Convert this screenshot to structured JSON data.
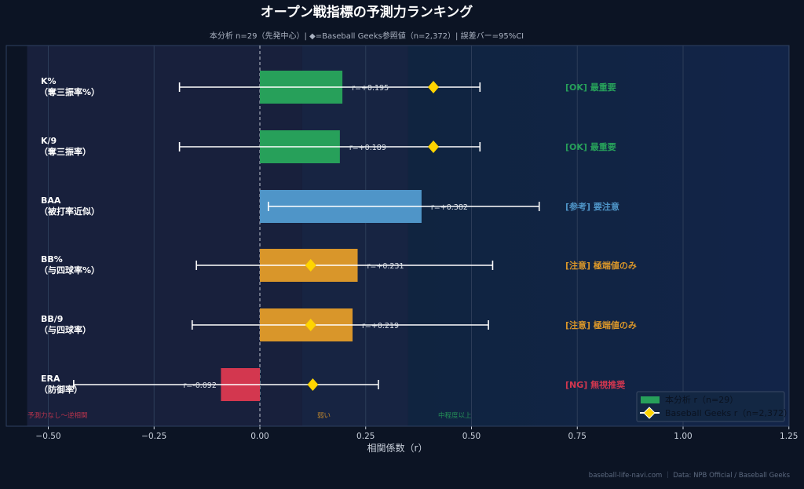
{
  "title": "オープン戦指標の予測力ランキング",
  "subtitle": "本分析 n=29（先発中心）| ◆=Baseball Geeks参照値（n=2,372）| 誤差バー=95%CI",
  "footer": "baseball-life-navi.com ｜ Data: NPB Official / Baseball Geeks",
  "colors": {
    "ok": "#27a05a",
    "ref": "#4f95c8",
    "warn": "#d9962a",
    "ng": "#d3374f",
    "diamond": "#ffd400",
    "background": "#0c1424"
  },
  "chart_data": {
    "type": "bar",
    "orientation": "horizontal",
    "xlabel": "相関係数（r）",
    "xlim": [
      -0.55,
      1.25
    ],
    "xticks": [
      "−0.50",
      "−0.25",
      "0.00",
      "0.25",
      "0.50",
      "0.75",
      "1.00",
      "1.25"
    ],
    "xtick_values": [
      -0.5,
      -0.25,
      0,
      0.25,
      0.5,
      0.75,
      1.0,
      1.25
    ],
    "grid": true,
    "legend_placement": "lower-right",
    "legend": [
      {
        "label": "本分析 r（n=29）",
        "marker": "bar"
      },
      {
        "label": "Baseball Geeks r（n=2,372）",
        "marker": "diamond"
      }
    ],
    "zones": [
      {
        "label": "予測力なし〜逆相関",
        "from": -0.55,
        "to": 0.1,
        "color": "#d3374f"
      },
      {
        "label": "弱い",
        "from": 0.1,
        "to": 0.35,
        "color": "#d9962a"
      },
      {
        "label": "中程度以上",
        "from": 0.35,
        "to": 1.25,
        "color": "#27a05a"
      }
    ],
    "categories": [
      {
        "name": "K%",
        "sub": "（奪三振率%）",
        "r": 0.195,
        "r_label": "r=+0.195",
        "ci": [
          -0.19,
          0.52
        ],
        "geeks": 0.41,
        "verdict": "[OK] 最重要",
        "level": "ok"
      },
      {
        "name": "K/9",
        "sub": "（奪三振率）",
        "r": 0.189,
        "r_label": "r=+0.189",
        "ci": [
          -0.19,
          0.52
        ],
        "geeks": 0.41,
        "verdict": "[OK] 最重要",
        "level": "ok"
      },
      {
        "name": "BAA",
        "sub": "（被打率近似）",
        "r": 0.382,
        "r_label": "r=+0.382",
        "ci": [
          0.02,
          0.66
        ],
        "geeks": null,
        "verdict": "[参考] 要注意",
        "level": "ref"
      },
      {
        "name": "BB%",
        "sub": "（与四球率%）",
        "r": 0.231,
        "r_label": "r=+0.231",
        "ci": [
          -0.15,
          0.55
        ],
        "geeks": 0.12,
        "verdict": "[注意] 極端値のみ",
        "level": "warn"
      },
      {
        "name": "BB/9",
        "sub": "（与四球率）",
        "r": 0.219,
        "r_label": "r=+0.219",
        "ci": [
          -0.16,
          0.54
        ],
        "geeks": 0.12,
        "verdict": "[注意] 極端値のみ",
        "level": "warn"
      },
      {
        "name": "ERA",
        "sub": "（防御率）",
        "r": -0.092,
        "r_label": "r=-0.092",
        "ci": [
          -0.44,
          0.28
        ],
        "geeks": 0.125,
        "verdict": "[NG] 無視推奨",
        "level": "ng"
      }
    ]
  }
}
